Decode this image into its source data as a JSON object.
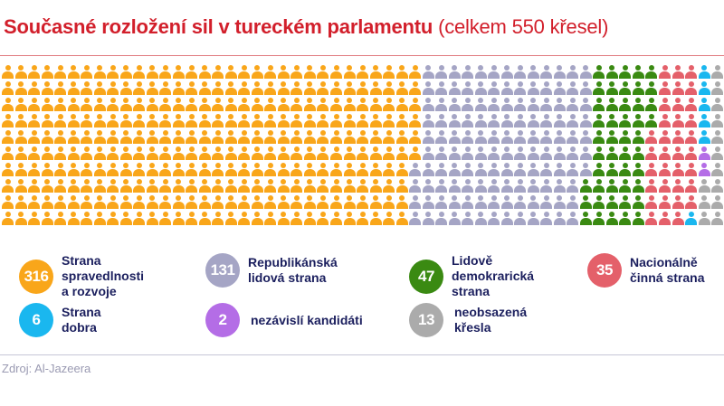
{
  "title": {
    "bold": "Současné rozložení sil v tureckém parlamentu",
    "light": "(celkem 550 křesel)"
  },
  "source": "Zdroj: Al-Jazeera",
  "legend": [
    {
      "value": "316",
      "label": "Strana\nspravedlnosti\na rozvoje",
      "color": "#f9a61a"
    },
    {
      "value": "131",
      "label": "Republikánská\nlidová strana",
      "color": "#a5a5c5"
    },
    {
      "value": "47",
      "label": "Lidově\ndemokrarická\nstrana",
      "color": "#3a8a12"
    },
    {
      "value": "35",
      "label": "Nacionálně\nčinná strana",
      "color": "#e4606a"
    },
    {
      "value": "6",
      "label": "Strana\ndobra",
      "color": "#1ab7ef"
    },
    {
      "value": "2",
      "label": "nezávislí kandidáti",
      "color": "#b46de6"
    },
    {
      "value": "13",
      "label": "neobsazená\nkřesla",
      "color": "#ababab"
    }
  ],
  "chart_data": {
    "type": "waffle",
    "title": "Současné rozložení sil v tureckém parlamentu (celkem 550 křesel)",
    "total": 550,
    "grid": {
      "rows": 10,
      "columns": 55,
      "fill_order": "column-major"
    },
    "categories": [
      "Strana spravedlnosti a rozvoje",
      "Republikánská lidová strana",
      "Lidově demokrarická strana",
      "Nacionálně činná strana",
      "Strana dobra",
      "nezávislí kandidáti",
      "neobsazená křesla"
    ],
    "values": [
      316,
      131,
      47,
      35,
      6,
      2,
      13
    ],
    "colors": [
      "#f9a61a",
      "#a5a5c5",
      "#3a8a12",
      "#e4606a",
      "#1ab7ef",
      "#b46de6",
      "#ababab"
    ],
    "source": "Zdroj: Al-Jazeera"
  }
}
